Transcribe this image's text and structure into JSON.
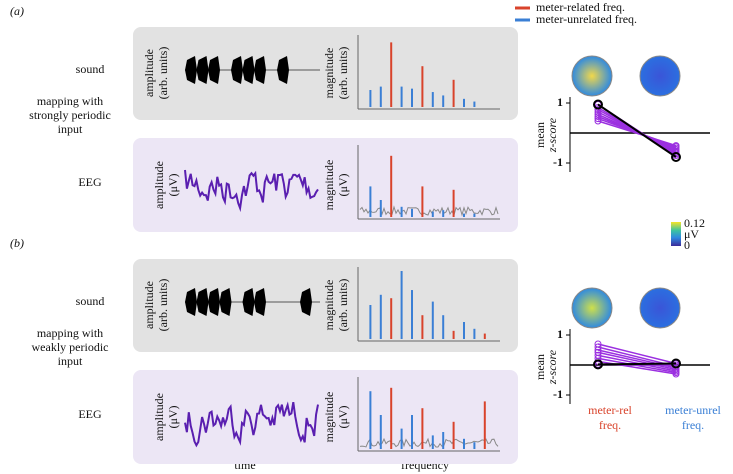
{
  "legend": {
    "related": "meter-related freq.",
    "unrelated": "meter-unrelated freq.",
    "related_color": "#d9432b",
    "unrelated_color": "#3a7fd5"
  },
  "colorbar": {
    "max": "0.12",
    "unit": "μV",
    "min": "0"
  },
  "x_labels": {
    "time": "time",
    "frequency": "frequency"
  },
  "panels": [
    {
      "label": "(a)",
      "sound_label": "sound",
      "mapping_label": [
        "mapping with",
        "strongly periodic",
        "input"
      ],
      "eeg_label": "EEG",
      "sound_amp_label": [
        "amplitude",
        "(arb. units)"
      ],
      "sound_mag_label": [
        "magnitude",
        "(arb. units)"
      ],
      "eeg_amp_label": [
        "amplitude",
        "(μV)"
      ],
      "eeg_mag_label": [
        "magnitude",
        "(μV)"
      ],
      "sound_blocks": [
        [
          0,
          1,
          2
        ],
        [
          4,
          5,
          6
        ],
        [
          8
        ]
      ],
      "sound_spectrum": {
        "related_x": [
          3,
          6,
          9
        ],
        "related": [
          95,
          60,
          40
        ],
        "unrelated_x": [
          1,
          2,
          4,
          5,
          7,
          8,
          10,
          11
        ],
        "unrelated": [
          25,
          30,
          30,
          27,
          22,
          17,
          12,
          8
        ]
      },
      "eeg_spectrum": {
        "related_x": [
          3,
          6,
          9
        ],
        "related": [
          90,
          45,
          40
        ],
        "unrelated_x": [
          1,
          2,
          4,
          5,
          7,
          8,
          10,
          11
        ],
        "unrelated": [
          45,
          25,
          15,
          12,
          8,
          10,
          5,
          5
        ]
      },
      "zscore": {
        "ylim": [
          -1.3,
          1.2
        ],
        "yticks": [
          1,
          -1
        ],
        "cat_related": "meter-rel",
        "cat_unrelated": "meter-unrel",
        "cat_suffix": "freq.",
        "y_label": [
          "mean",
          "z-score"
        ],
        "related": [
          0.95,
          0.85,
          0.78,
          0.7,
          0.62,
          0.55,
          0.48,
          0.4
        ],
        "unrelated": [
          -0.75,
          -0.7,
          -0.65,
          -0.6,
          -0.55,
          -0.5,
          -0.45,
          -0.42
        ],
        "mean_related": 0.95,
        "mean_unrelated": -0.8
      }
    },
    {
      "label": "(b)",
      "sound_label": "sound",
      "mapping_label": [
        "mapping with",
        "weakly periodic",
        "input"
      ],
      "eeg_label": "EEG",
      "sound_amp_label": [
        "amplitude",
        "(arb. units)"
      ],
      "sound_mag_label": [
        "magnitude",
        "(arb. units)"
      ],
      "eeg_amp_label": [
        "amplitude",
        "(μV)"
      ],
      "eeg_mag_label": [
        "magnitude",
        "(μV)"
      ],
      "sound_blocks": [
        [
          0,
          1,
          2,
          3
        ],
        [
          5,
          6
        ],
        [
          10
        ]
      ],
      "sound_spectrum": {
        "related_x": [
          3,
          6,
          9,
          12
        ],
        "related": [
          60,
          35,
          12,
          8
        ],
        "unrelated_x": [
          1,
          2,
          4,
          5,
          7,
          8,
          10,
          11
        ],
        "unrelated": [
          50,
          65,
          100,
          72,
          55,
          35,
          25,
          15
        ]
      },
      "eeg_spectrum": {
        "related_x": [
          3,
          6,
          9,
          12
        ],
        "related": [
          90,
          60,
          40,
          70
        ],
        "unrelated_x": [
          1,
          2,
          4,
          5,
          7,
          8,
          10,
          11
        ],
        "unrelated": [
          85,
          50,
          30,
          50,
          20,
          25,
          15,
          10
        ]
      },
      "zscore": {
        "ylim": [
          -1.3,
          1.2
        ],
        "yticks": [
          1,
          -1
        ],
        "y_label": [
          "mean",
          "z-score"
        ],
        "related": [
          0.7,
          0.6,
          0.5,
          0.42,
          0.32,
          0.22,
          0.12,
          0.02
        ],
        "unrelated": [
          0.05,
          -0.05,
          -0.1,
          -0.15,
          -0.2,
          -0.25,
          -0.3,
          0.0
        ],
        "mean_related": 0.02,
        "mean_unrelated": 0.05
      }
    }
  ]
}
